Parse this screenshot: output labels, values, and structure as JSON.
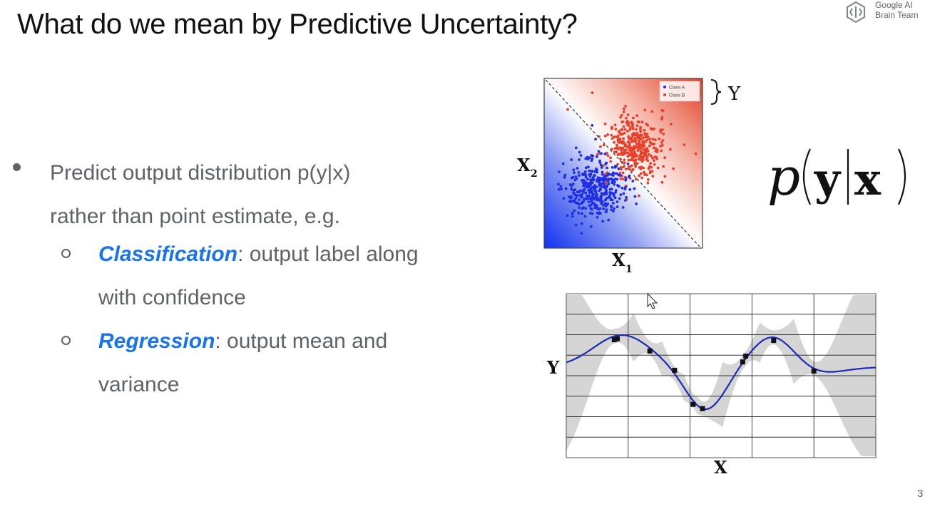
{
  "slide": {
    "title": "What do we mean by Predictive Uncertainty?",
    "page_number": "3",
    "logo": {
      "line1": "Google AI",
      "line2": "Brain Team"
    }
  },
  "bullets": {
    "main_line1": "Predict output distribution p(y|x)",
    "main_line2": "rather than point estimate, e.g.",
    "sub1_keyword": "Classification",
    "sub1_rest": ": output label along",
    "sub1_line2": "with confidence",
    "sub2_keyword": "Regression",
    "sub2_rest": ": output mean and",
    "sub2_line2": "variance"
  },
  "figures": {
    "scatter": {
      "legend": [
        "Class A",
        "Class B"
      ],
      "xlabel": "X",
      "xlabel_sub": "1",
      "ylabel": "X",
      "ylabel_sub": "2",
      "y_brace_label": "Y",
      "colors": {
        "class_a": "#1f2fe6",
        "class_b": "#e8402b"
      }
    },
    "formula": {
      "p": "p",
      "y": "y",
      "bar": "|",
      "x": "x"
    },
    "regression": {
      "xlabel": "X",
      "ylabel": "Y"
    }
  }
}
